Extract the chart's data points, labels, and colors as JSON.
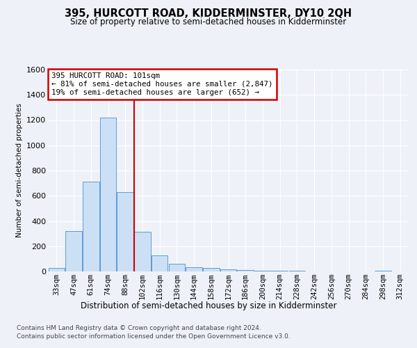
{
  "title": "395, HURCOTT ROAD, KIDDERMINSTER, DY10 2QH",
  "subtitle": "Size of property relative to semi-detached houses in Kidderminster",
  "xlabel": "Distribution of semi-detached houses by size in Kidderminster",
  "ylabel": "Number of semi-detached properties",
  "categories": [
    "33sqm",
    "47sqm",
    "61sqm",
    "74sqm",
    "88sqm",
    "102sqm",
    "116sqm",
    "130sqm",
    "144sqm",
    "158sqm",
    "172sqm",
    "186sqm",
    "200sqm",
    "214sqm",
    "228sqm",
    "242sqm",
    "256sqm",
    "270sqm",
    "284sqm",
    "298sqm",
    "312sqm"
  ],
  "values": [
    30,
    320,
    710,
    1220,
    630,
    315,
    125,
    60,
    35,
    25,
    18,
    12,
    8,
    5,
    3,
    2,
    1,
    0,
    0,
    5,
    0
  ],
  "bar_color": "#cce0f5",
  "bar_edge_color": "#5b9bd5",
  "vline_color": "#cc0000",
  "annotation_text": "395 HURCOTT ROAD: 101sqm\n← 81% of semi-detached houses are smaller (2,847)\n19% of semi-detached houses are larger (652) →",
  "annotation_box_color": "#cc0000",
  "ylim": [
    0,
    1600
  ],
  "yticks": [
    0,
    200,
    400,
    600,
    800,
    1000,
    1200,
    1400,
    1600
  ],
  "footer_line1": "Contains HM Land Registry data © Crown copyright and database right 2024.",
  "footer_line2": "Contains public sector information licensed under the Open Government Licence v3.0.",
  "background_color": "#eef2f8",
  "grid_color": "#ffffff"
}
